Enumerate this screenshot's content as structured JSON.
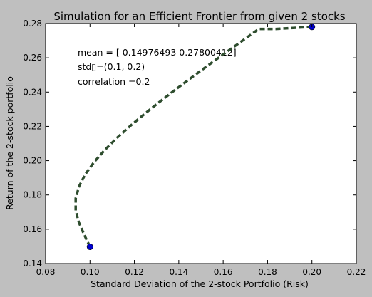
{
  "chart_data": {
    "type": "line",
    "title": "Simulation for an Efficient Frontier from given 2 stocks",
    "xlabel": "Standard Deviation of the 2-stock Portfolio (Risk)",
    "ylabel": "Return of the 2-stock portfolio",
    "xlim": [
      0.08,
      0.22
    ],
    "ylim": [
      0.14,
      0.28
    ],
    "xticks": [
      0.08,
      0.1,
      0.12,
      0.14,
      0.16,
      0.18,
      0.2,
      0.22
    ],
    "yticks": [
      0.14,
      0.16,
      0.18,
      0.2,
      0.22,
      0.24,
      0.26,
      0.28
    ],
    "xtick_labels": [
      "0.08",
      "0.10",
      "0.12",
      "0.14",
      "0.16",
      "0.18",
      "0.20",
      "0.22"
    ],
    "ytick_labels": [
      "0.14",
      "0.16",
      "0.18",
      "0.20",
      "0.22",
      "0.24",
      "0.26",
      "0.28"
    ],
    "grid": false,
    "annotations": [
      "mean = [ 0.14976493  0.27800412]",
      "std▯=(0.1, 0.2)",
      "correlation =0.2"
    ],
    "series": [
      {
        "style": "dashed",
        "color": "#2e4d2e",
        "x": [
          0.1,
          0.09738,
          0.09503,
          0.09354,
          0.09355,
          0.09508,
          0.09792,
          0.10186,
          0.10668,
          0.11218,
          0.11825,
          0.12475,
          0.13157,
          0.13864,
          0.14592,
          0.15332,
          0.16086,
          0.16847,
          0.17612,
          0.18381,
          0.19154,
          0.2
        ],
        "y": [
          0.14976,
          0.15682,
          0.16388,
          0.17095,
          0.17801,
          0.18507,
          0.19213,
          0.19919,
          0.20625,
          0.21331,
          0.22037,
          0.22743,
          0.2345,
          0.24156,
          0.24862,
          0.25568,
          0.26274,
          0.2698,
          0.27686,
          0.27686,
          0.27741,
          0.278
        ]
      }
    ],
    "points": {
      "color": "#0000cc",
      "x": [
        0.1,
        0.2
      ],
      "y": [
        0.14976493,
        0.27800412
      ]
    }
  }
}
